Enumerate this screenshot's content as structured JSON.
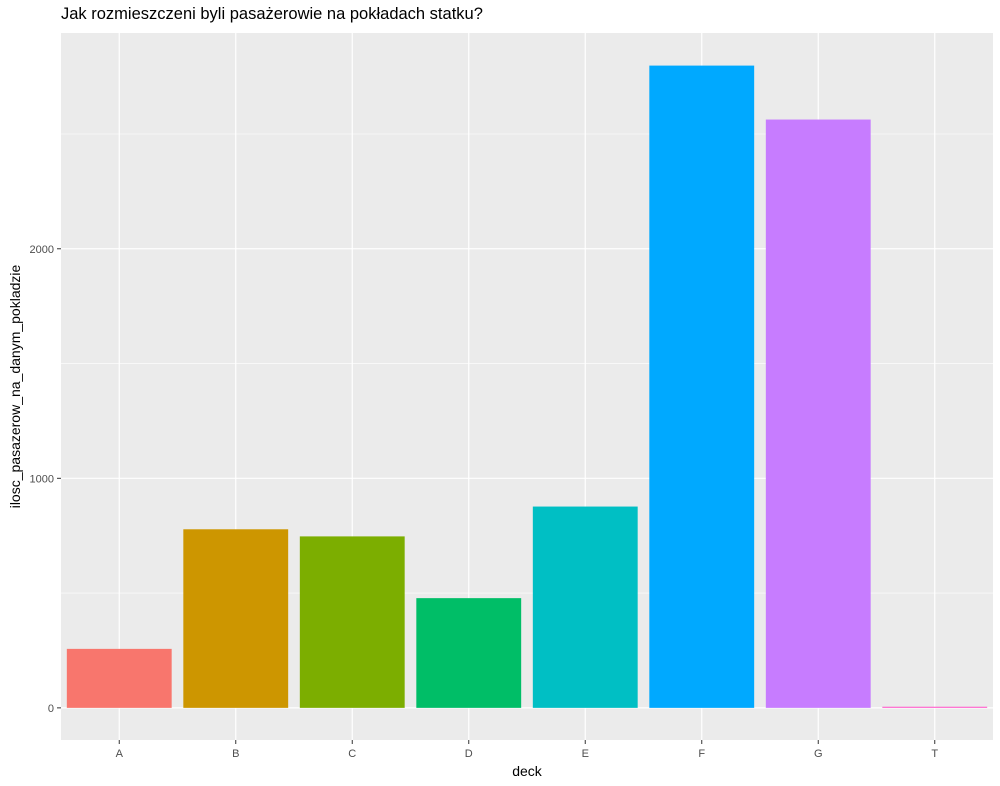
{
  "chart_data": {
    "type": "bar",
    "title": "Jak rozmieszczeni byli pasażerowie na pokładach statku?",
    "xlabel": "deck",
    "ylabel": "ilosc_pasazerow_na_danym_pokladzie",
    "categories": [
      "A",
      "B",
      "C",
      "D",
      "E",
      "F",
      "G",
      "T"
    ],
    "values": [
      257,
      778,
      747,
      478,
      877,
      2798,
      2563,
      5
    ],
    "colors": [
      "#F8766D",
      "#CD9600",
      "#7CAE00",
      "#00BE67",
      "#00BFC4",
      "#00A9FF",
      "#C77CFF",
      "#FF61CC"
    ],
    "y_ticks": [
      0,
      1000,
      2000
    ],
    "y_tick_labels": [
      "0",
      "1000",
      "2000"
    ],
    "ylim": [
      -140,
      2940
    ],
    "grid": true,
    "legend": "none"
  }
}
